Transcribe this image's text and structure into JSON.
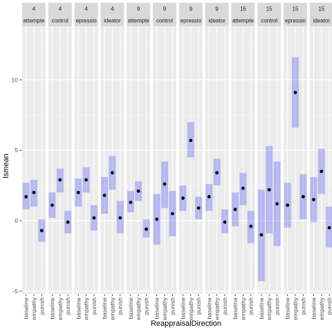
{
  "chart_data": {
    "type": "scatter",
    "xlabel": "ReappraisalDirection",
    "ylabel": "lsmean",
    "ylim": [
      -5.2,
      13.8
    ],
    "yticks": [
      -5,
      0,
      5,
      10
    ],
    "categories": [
      "baseline",
      "empathy",
      "punish"
    ],
    "grid": true,
    "point_color": "#000000",
    "interval_color": "#0000ff",
    "panel_color": "#ebebeb",
    "strip_color": "#d9d9d9",
    "facet_row1_labels": [
      "4",
      "4",
      "4",
      "4",
      "9",
      "9",
      "9",
      "9",
      "15",
      "15",
      "15",
      "15"
    ],
    "facet_row2_labels": [
      "attempte",
      "control",
      "epressio",
      "ideator",
      "attempte",
      "control",
      "epressio",
      "ideator",
      "attempte",
      "control",
      "epressio",
      "ideator"
    ],
    "panels": [
      {
        "points": [
          [
            1.7,
            0.8,
            2.7
          ],
          [
            2.0,
            1.0,
            2.9
          ],
          [
            -0.7,
            -1.5,
            0.1
          ]
        ]
      },
      {
        "points": [
          [
            1.1,
            0.2,
            2.0
          ],
          [
            2.9,
            2.0,
            3.7
          ],
          [
            -0.1,
            -0.9,
            0.7
          ]
        ]
      },
      {
        "points": [
          [
            2.0,
            1.0,
            3.0
          ],
          [
            2.9,
            2.0,
            3.8
          ],
          [
            0.2,
            -0.7,
            1.1
          ]
        ]
      },
      {
        "points": [
          [
            1.8,
            0.5,
            3.1
          ],
          [
            3.4,
            2.2,
            4.6
          ],
          [
            0.2,
            -0.9,
            1.4
          ]
        ]
      },
      {
        "points": [
          [
            1.3,
            0.6,
            2.1
          ],
          [
            2.1,
            1.4,
            2.8
          ],
          [
            -0.6,
            -1.2,
            0.1
          ]
        ]
      },
      {
        "points": [
          [
            0.1,
            -1.7,
            1.9
          ],
          [
            2.6,
            0.9,
            4.2
          ],
          [
            0.5,
            -1.1,
            2.1
          ]
        ]
      },
      {
        "points": [
          [
            1.6,
            0.7,
            2.5
          ],
          [
            5.7,
            4.5,
            7.0
          ],
          [
            0.9,
            0.1,
            1.7
          ]
        ]
      },
      {
        "points": [
          [
            1.7,
            0.7,
            2.6
          ],
          [
            3.4,
            2.5,
            4.4
          ],
          [
            -0.1,
            -0.9,
            0.8
          ]
        ]
      },
      {
        "points": [
          [
            0.8,
            -0.4,
            2.0
          ],
          [
            2.3,
            1.1,
            3.4
          ],
          [
            -0.4,
            -1.6,
            0.7
          ]
        ]
      },
      {
        "points": [
          [
            -1.0,
            -4.3,
            2.2
          ],
          [
            2.2,
            -0.9,
            5.3
          ],
          [
            1.2,
            -1.8,
            4.2
          ]
        ]
      },
      {
        "points": [
          [
            1.1,
            -0.5,
            2.7
          ],
          [
            9.1,
            6.6,
            11.6
          ],
          [
            1.7,
            0.1,
            3.3
          ]
        ]
      },
      {
        "points": [
          [
            1.5,
            -0.1,
            3.1
          ],
          [
            3.5,
            1.9,
            5.1
          ],
          [
            -0.5,
            -1.9,
            1.0
          ]
        ]
      }
    ]
  }
}
